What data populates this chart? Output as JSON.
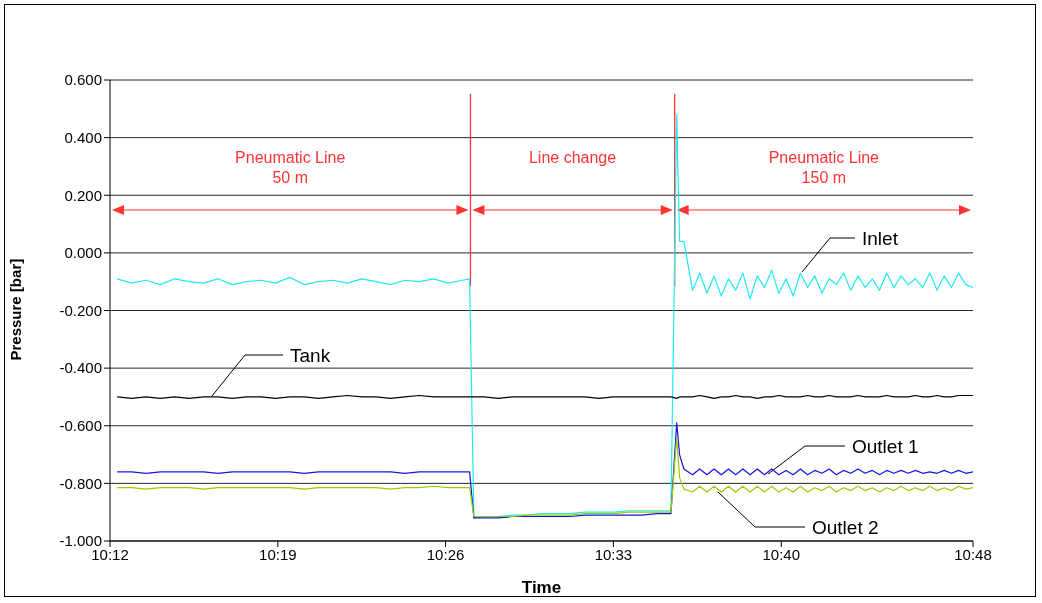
{
  "chart_data": {
    "type": "line",
    "xlabel": "Time",
    "ylabel": "Pressure [bar]",
    "x": [
      10.205,
      10.215,
      10.225,
      10.235,
      10.245,
      10.255,
      10.265,
      10.275,
      10.285,
      10.295,
      10.305,
      10.315,
      10.325,
      10.335,
      10.345,
      10.355,
      10.365,
      10.375,
      10.385,
      10.395,
      10.405,
      10.415,
      10.425,
      10.435,
      10.445,
      10.45,
      10.453,
      10.46,
      10.47,
      10.48,
      10.49,
      10.5,
      10.51,
      10.52,
      10.53,
      10.54,
      10.55,
      10.56,
      10.57,
      10.58,
      10.59,
      10.594,
      10.596,
      10.599,
      10.605,
      10.61,
      10.615,
      10.62,
      10.625,
      10.63,
      10.635,
      10.64,
      10.645,
      10.65,
      10.655,
      10.66,
      10.665,
      10.67,
      10.675,
      10.68,
      10.685,
      10.69,
      10.695,
      10.7,
      10.705,
      10.71,
      10.715,
      10.72,
      10.725,
      10.73,
      10.735,
      10.74,
      10.745,
      10.75,
      10.755,
      10.76,
      10.765,
      10.77,
      10.775,
      10.78,
      10.785,
      10.79,
      10.795,
      10.8
    ],
    "series": [
      {
        "name": "Inlet",
        "color": "#22e8f0",
        "values": [
          -0.09,
          -0.105,
          -0.095,
          -0.11,
          -0.09,
          -0.1,
          -0.105,
          -0.09,
          -0.11,
          -0.1,
          -0.095,
          -0.105,
          -0.085,
          -0.11,
          -0.1,
          -0.095,
          -0.105,
          -0.09,
          -0.1,
          -0.11,
          -0.095,
          -0.1,
          -0.09,
          -0.105,
          -0.095,
          -0.09,
          -0.92,
          -0.915,
          -0.915,
          -0.91,
          -0.91,
          -0.905,
          -0.905,
          -0.905,
          -0.9,
          -0.9,
          -0.9,
          -0.895,
          -0.895,
          -0.895,
          -0.895,
          0.48,
          0.04,
          0.04,
          -0.13,
          -0.07,
          -0.14,
          -0.08,
          -0.15,
          -0.09,
          -0.13,
          -0.07,
          -0.16,
          -0.08,
          -0.12,
          -0.06,
          -0.14,
          -0.09,
          -0.15,
          -0.07,
          -0.12,
          -0.08,
          -0.14,
          -0.09,
          -0.11,
          -0.07,
          -0.13,
          -0.08,
          -0.12,
          -0.09,
          -0.13,
          -0.07,
          -0.12,
          -0.08,
          -0.11,
          -0.09,
          -0.12,
          -0.07,
          -0.13,
          -0.08,
          -0.12,
          -0.07,
          -0.11,
          -0.12
        ]
      },
      {
        "name": "Tank",
        "color": "#000000",
        "values": [
          -0.5,
          -0.505,
          -0.5,
          -0.505,
          -0.5,
          -0.505,
          -0.5,
          -0.5,
          -0.505,
          -0.5,
          -0.5,
          -0.505,
          -0.5,
          -0.5,
          -0.505,
          -0.5,
          -0.495,
          -0.5,
          -0.5,
          -0.505,
          -0.5,
          -0.495,
          -0.5,
          -0.5,
          -0.5,
          -0.5,
          -0.5,
          -0.5,
          -0.505,
          -0.5,
          -0.5,
          -0.5,
          -0.5,
          -0.5,
          -0.5,
          -0.505,
          -0.5,
          -0.5,
          -0.5,
          -0.5,
          -0.5,
          -0.505,
          -0.5,
          -0.5,
          -0.5,
          -0.495,
          -0.5,
          -0.505,
          -0.5,
          -0.5,
          -0.495,
          -0.5,
          -0.5,
          -0.505,
          -0.5,
          -0.5,
          -0.495,
          -0.5,
          -0.5,
          -0.5,
          -0.495,
          -0.5,
          -0.5,
          -0.495,
          -0.5,
          -0.5,
          -0.5,
          -0.495,
          -0.5,
          -0.5,
          -0.5,
          -0.495,
          -0.5,
          -0.5,
          -0.5,
          -0.495,
          -0.5,
          -0.5,
          -0.495,
          -0.5,
          -0.5,
          -0.495,
          -0.495,
          -0.495
        ]
      },
      {
        "name": "Outlet 1",
        "color": "#1414e6",
        "values": [
          -0.76,
          -0.76,
          -0.765,
          -0.76,
          -0.76,
          -0.76,
          -0.76,
          -0.765,
          -0.76,
          -0.76,
          -0.76,
          -0.76,
          -0.76,
          -0.765,
          -0.76,
          -0.76,
          -0.76,
          -0.76,
          -0.76,
          -0.76,
          -0.765,
          -0.76,
          -0.76,
          -0.76,
          -0.76,
          -0.76,
          -0.92,
          -0.92,
          -0.92,
          -0.915,
          -0.915,
          -0.915,
          -0.915,
          -0.915,
          -0.91,
          -0.91,
          -0.91,
          -0.91,
          -0.91,
          -0.905,
          -0.905,
          -0.59,
          -0.7,
          -0.75,
          -0.77,
          -0.75,
          -0.77,
          -0.75,
          -0.77,
          -0.75,
          -0.77,
          -0.75,
          -0.77,
          -0.75,
          -0.77,
          -0.75,
          -0.77,
          -0.755,
          -0.77,
          -0.75,
          -0.77,
          -0.755,
          -0.765,
          -0.75,
          -0.77,
          -0.755,
          -0.765,
          -0.75,
          -0.765,
          -0.755,
          -0.77,
          -0.755,
          -0.765,
          -0.755,
          -0.765,
          -0.755,
          -0.765,
          -0.76,
          -0.765,
          -0.755,
          -0.765,
          -0.755,
          -0.765,
          -0.76
        ]
      },
      {
        "name": "Outlet 2",
        "color": "#99cc00",
        "values": [
          -0.815,
          -0.815,
          -0.82,
          -0.815,
          -0.815,
          -0.815,
          -0.82,
          -0.815,
          -0.815,
          -0.815,
          -0.815,
          -0.815,
          -0.815,
          -0.82,
          -0.815,
          -0.815,
          -0.815,
          -0.815,
          -0.815,
          -0.82,
          -0.815,
          -0.815,
          -0.81,
          -0.815,
          -0.815,
          -0.815,
          -0.915,
          -0.915,
          -0.915,
          -0.915,
          -0.91,
          -0.91,
          -0.91,
          -0.91,
          -0.905,
          -0.905,
          -0.905,
          -0.9,
          -0.9,
          -0.9,
          -0.9,
          -0.64,
          -0.78,
          -0.82,
          -0.83,
          -0.81,
          -0.83,
          -0.81,
          -0.83,
          -0.81,
          -0.83,
          -0.81,
          -0.83,
          -0.81,
          -0.83,
          -0.81,
          -0.83,
          -0.815,
          -0.83,
          -0.81,
          -0.83,
          -0.815,
          -0.825,
          -0.81,
          -0.83,
          -0.815,
          -0.825,
          -0.81,
          -0.825,
          -0.815,
          -0.83,
          -0.815,
          -0.825,
          -0.81,
          -0.825,
          -0.815,
          -0.825,
          -0.81,
          -0.825,
          -0.815,
          -0.825,
          -0.81,
          -0.82,
          -0.815
        ]
      }
    ],
    "xlim": [
      10.2,
      10.8
    ],
    "xticks": [
      {
        "value": 10.2,
        "label": "10:12"
      },
      {
        "value": 10.3167,
        "label": "10:19"
      },
      {
        "value": 10.4333,
        "label": "10:26"
      },
      {
        "value": 10.55,
        "label": "10:33"
      },
      {
        "value": 10.6667,
        "label": "10:40"
      },
      {
        "value": 10.8,
        "label": "10:48"
      }
    ],
    "ylim": [
      -1.0,
      0.6
    ],
    "yticks": [
      {
        "value": -1.0,
        "label": "-1.000"
      },
      {
        "value": -0.8,
        "label": "-0.800"
      },
      {
        "value": -0.6,
        "label": "-0.600"
      },
      {
        "value": -0.4,
        "label": "-0.400"
      },
      {
        "value": -0.2,
        "label": "-0.200"
      },
      {
        "value": 0,
        "label": "0.000"
      },
      {
        "value": 0.2,
        "label": "0.200"
      },
      {
        "value": 0.4,
        "label": "0.400"
      },
      {
        "value": 0.6,
        "label": "0.600"
      }
    ],
    "grid": "y",
    "marker": "none",
    "line_style": "solid",
    "ref_lines": [
      {
        "axis": "x",
        "value": 10.4506,
        "color": "#ff3333"
      },
      {
        "axis": "x",
        "value": 10.5926,
        "color": "#ff3333"
      }
    ],
    "annotations": [
      "Pneumatic Line\n50 m",
      "Line change",
      "Pneumatic Line\n150 m"
    ]
  }
}
